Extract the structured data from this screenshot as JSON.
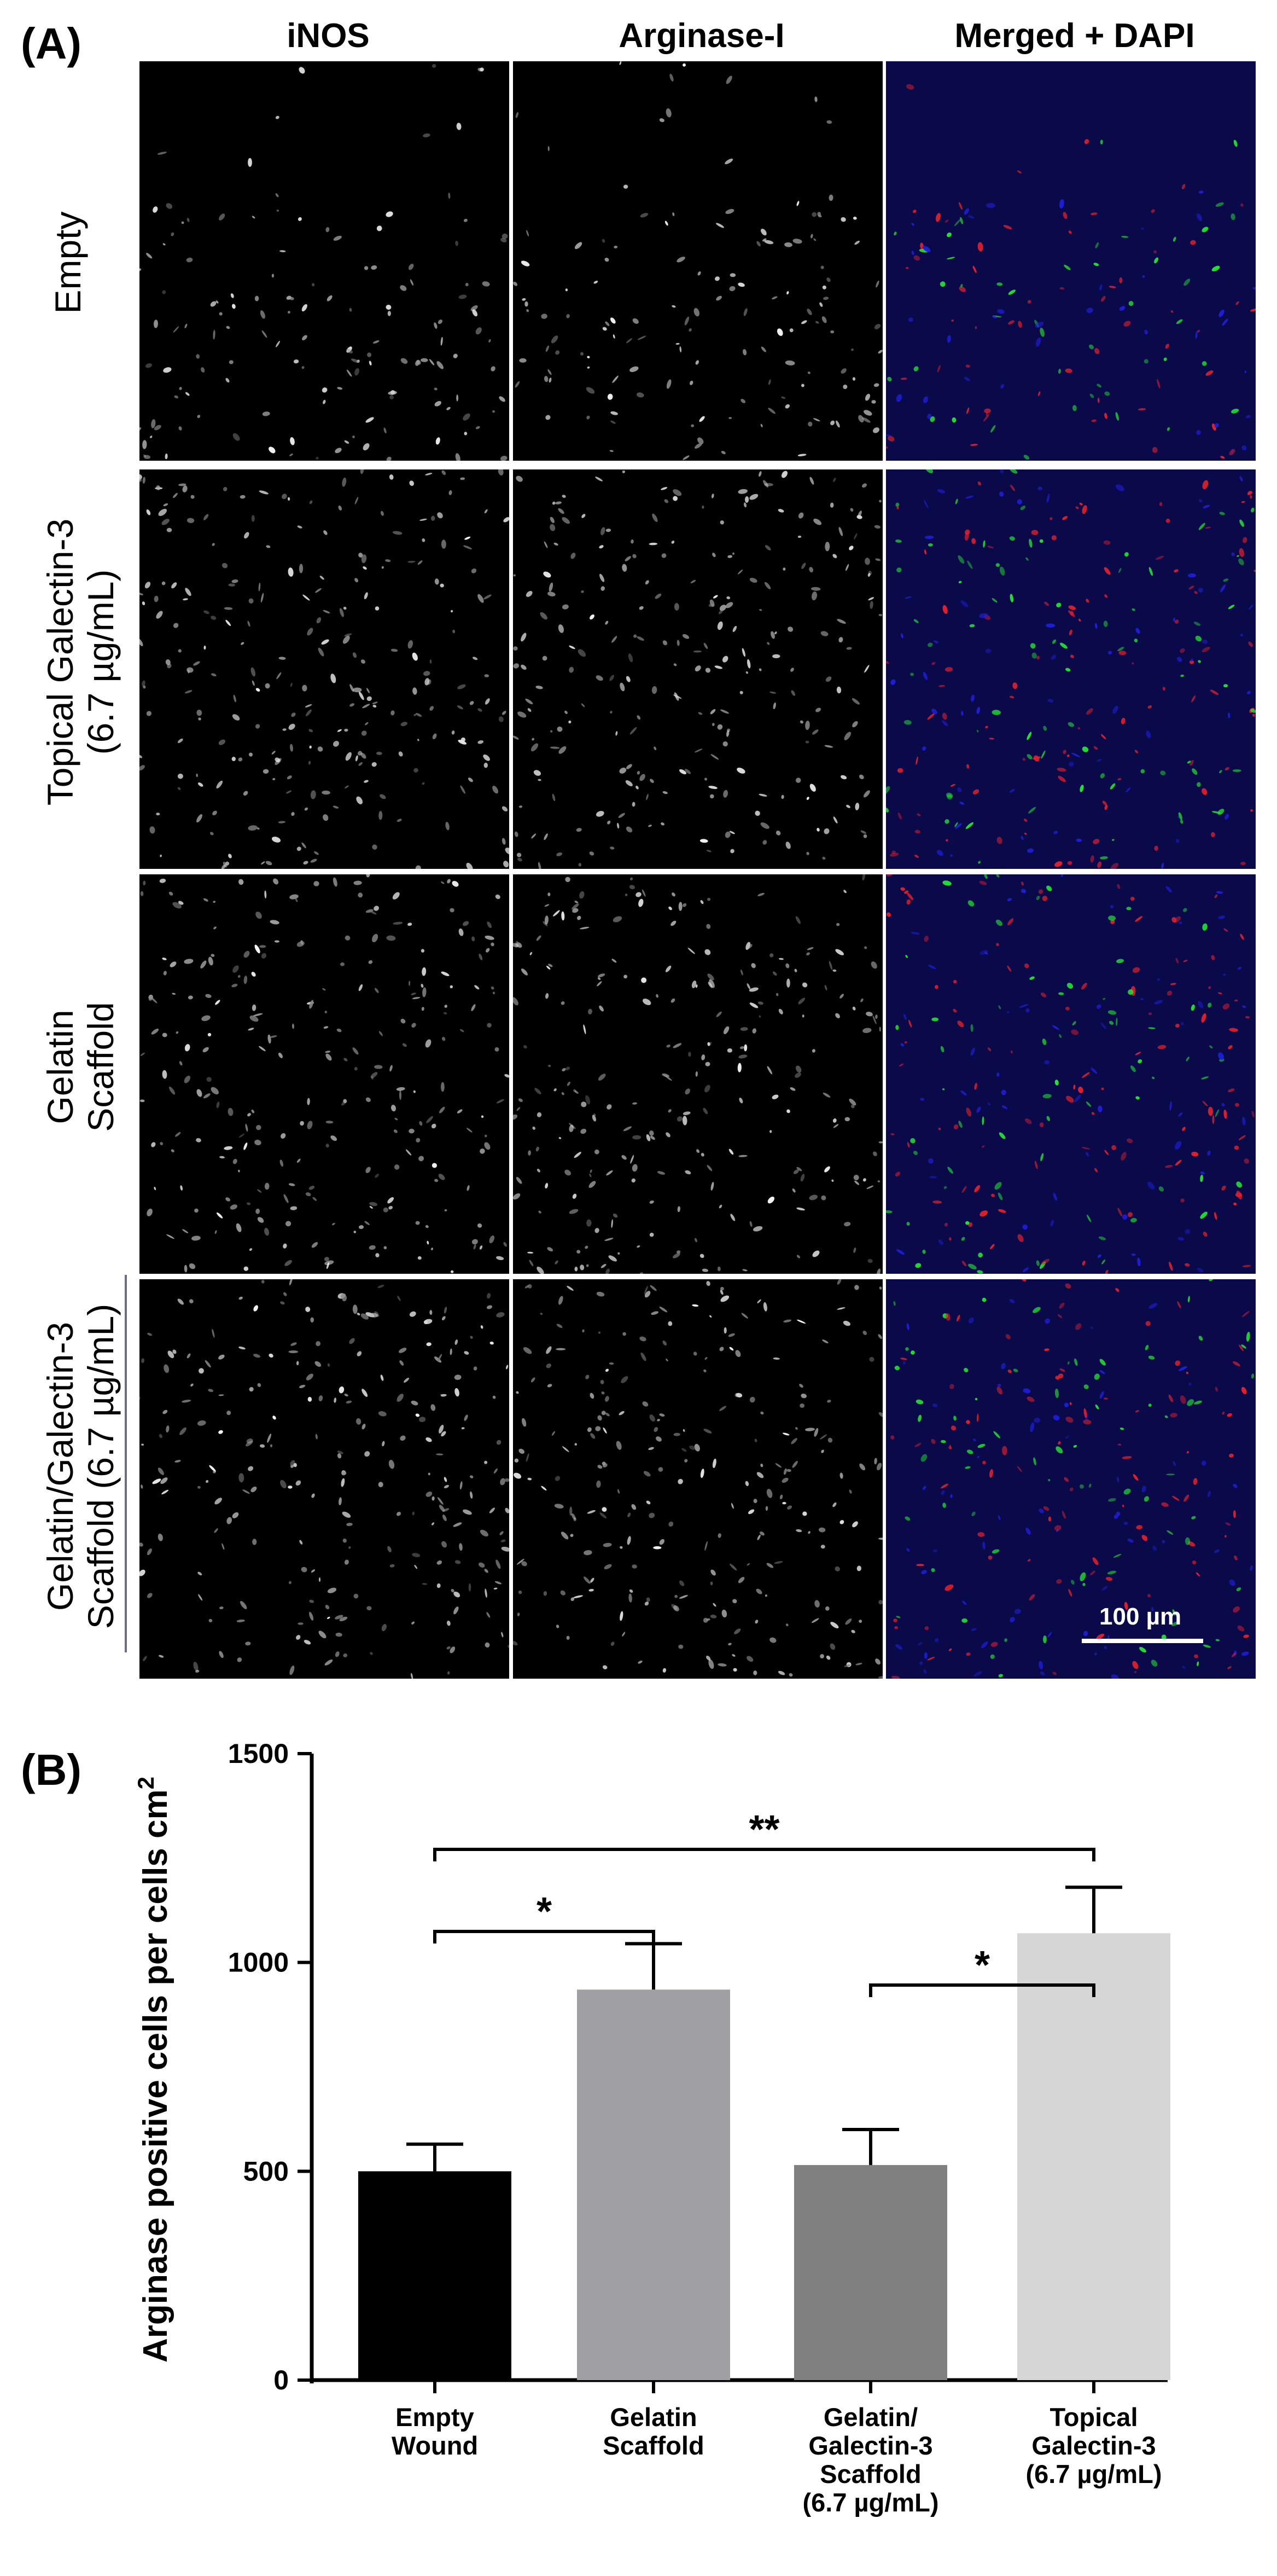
{
  "panel_a": {
    "label": "(A)",
    "columns": [
      "iNOS",
      "Arginase-I",
      "Merged + DAPI"
    ],
    "rows": [
      {
        "lines": [
          "Empty"
        ]
      },
      {
        "lines": [
          "Topical Galectin-3",
          "(6.7 µg/mL)"
        ]
      },
      {
        "lines": [
          "Gelatin",
          "Scaffold"
        ]
      },
      {
        "lines": [
          "Gelatin/Galectin-3",
          "Scaffold (6.7 µg/mL)"
        ]
      }
    ],
    "scale_bar": "100 µm"
  },
  "panel_b": {
    "label": "(B)"
  },
  "colors": {
    "bar_empty": "#000000",
    "bar_gelatin": "#a0a0a4",
    "bar_gel_gal": "#808080",
    "bar_topical": "#d6d6d6",
    "merged_red": "#e0202a",
    "merged_green": "#22e030",
    "merged_blue": "#1e1ed8"
  },
  "chart_data": {
    "type": "bar",
    "categories": [
      [
        "Empty",
        "Wound"
      ],
      [
        "Gelatin",
        "Scaffold"
      ],
      [
        "Gelatin/",
        "Galectin-3",
        "Scaffold",
        "(6.7 µg/mL)"
      ],
      [
        "Topical",
        "Galectin-3",
        "(6.7 µg/mL)"
      ]
    ],
    "values": [
      500,
      935,
      515,
      1070
    ],
    "errors": [
      65,
      110,
      85,
      110
    ],
    "ylabel": "Arginase positive cells per cells cm",
    "ylabel_superscript": "2",
    "ylim": [
      0,
      1500
    ],
    "yticks": [
      0,
      500,
      1000,
      1500
    ],
    "significance": [
      {
        "from": 0,
        "to": 3,
        "label": "**"
      },
      {
        "from": 0,
        "to": 1,
        "label": "*"
      },
      {
        "from": 2,
        "to": 3,
        "label": "*"
      }
    ]
  }
}
